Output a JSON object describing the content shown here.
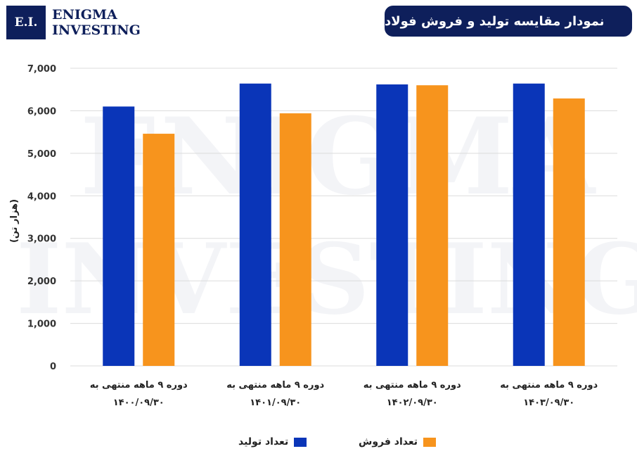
{
  "logo": {
    "initials": "E.I.",
    "line1": "ENIGMA",
    "line2": "INVESTING"
  },
  "header": {
    "title": "نمودار مقایسه تولید و فروش فولاد"
  },
  "colors": {
    "production": "#0a35b8",
    "sales": "#f7941d",
    "header_bg": "#0e1f5b"
  },
  "chart_data": {
    "type": "bar",
    "title": "نمودار مقایسه تولید و فروش فولاد",
    "ylabel": "(هزار تن)",
    "xlabel": "",
    "ylim": [
      0,
      7000
    ],
    "yticks": [
      0,
      1000,
      2000,
      3000,
      4000,
      5000,
      6000,
      7000
    ],
    "ytick_labels": [
      "0",
      "1,000",
      "2,000",
      "3,000",
      "4,000",
      "5,000",
      "6,000",
      "7,000"
    ],
    "categories": [
      {
        "line1": "دوره ۹ ماهه منتهی به",
        "line2": "۱۴۰۰/۰۹/۳۰"
      },
      {
        "line1": "دوره ۹ ماهه منتهی به",
        "line2": "۱۴۰۱/۰۹/۳۰"
      },
      {
        "line1": "دوره ۹ ماهه منتهی به",
        "line2": "۱۴۰۲/۰۹/۳۰"
      },
      {
        "line1": "دوره ۹ ماهه منتهی به",
        "line2": "۱۴۰۳/۰۹/۳۰"
      }
    ],
    "series": [
      {
        "name": "تعداد تولید",
        "values": [
          6100,
          6640,
          6620,
          6640
        ]
      },
      {
        "name": "تعداد فروش",
        "values": [
          5460,
          5940,
          6600,
          6290
        ]
      }
    ],
    "grid": true,
    "legend_position": "bottom"
  },
  "watermark": {
    "line1": "ENIGMA",
    "line2": "INVESTING"
  }
}
